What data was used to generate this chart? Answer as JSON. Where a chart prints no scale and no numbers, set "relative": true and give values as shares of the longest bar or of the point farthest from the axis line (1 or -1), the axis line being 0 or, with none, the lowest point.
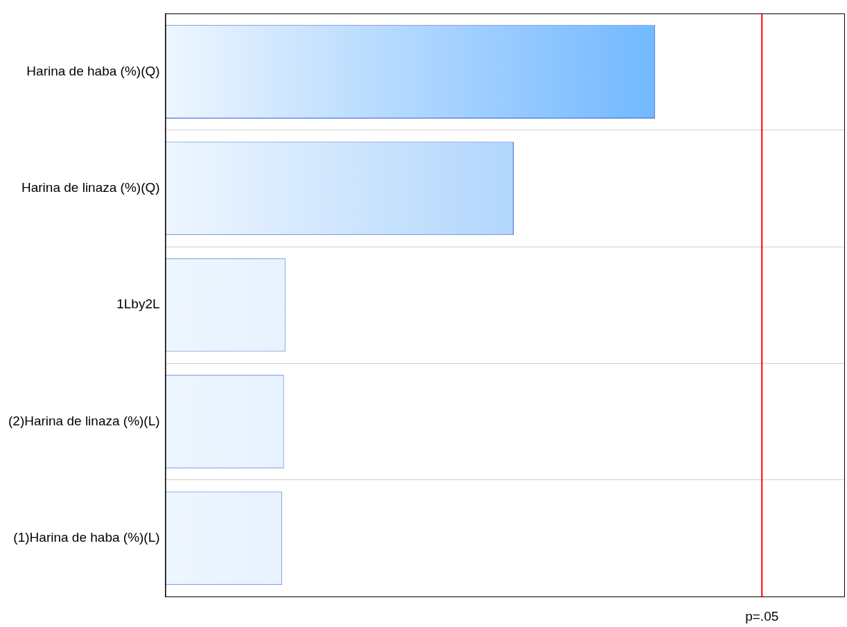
{
  "chart_data": {
    "type": "bar",
    "orientation": "horizontal",
    "relative": true,
    "categories": [
      "Harina de haba (%)(Q)",
      "Harina de linaza (%)(Q)",
      "1Lby2L",
      "(2)Harina de linaza (%)(L)",
      "(1)Harina de haba (%)(L)"
    ],
    "values": [
      1,
      0.711,
      0.245,
      0.242,
      0.238
    ],
    "colors": [
      "#42a0ff",
      "#78b8fa",
      "#c6e0fb",
      "#c6e0fb",
      "#c6e0fb"
    ],
    "ref_lines": [
      {
        "axis": "x",
        "value": 1.218,
        "label": "p=.05",
        "color": "#ff0000"
      }
    ],
    "grid": "y",
    "legend": false
  }
}
